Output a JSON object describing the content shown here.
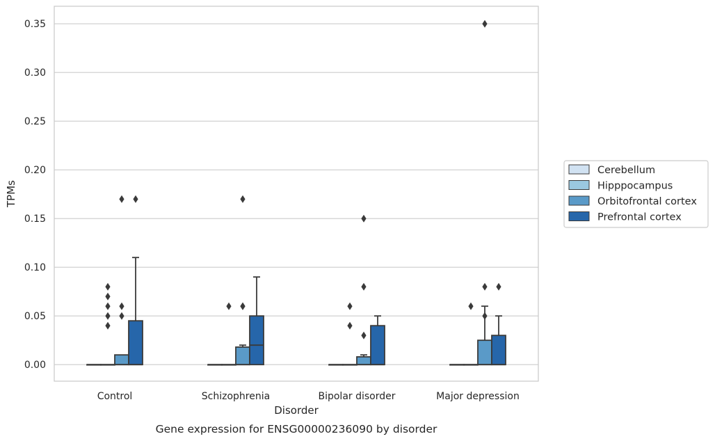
{
  "chart_data": {
    "type": "box",
    "title": "",
    "caption": "Gene expression for ENSG00000236090 by disorder",
    "xlabel": "Disorder",
    "ylabel": "TPMs",
    "ylim": [
      -0.017,
      0.368
    ],
    "yticks": [
      0.0,
      0.05,
      0.1,
      0.15,
      0.2,
      0.25,
      0.3,
      0.35
    ],
    "ytick_labels": [
      "0.00",
      "0.05",
      "0.10",
      "0.15",
      "0.20",
      "0.25",
      "0.30",
      "0.35"
    ],
    "grid": "horizontal",
    "legend_position": "right",
    "categories": [
      "Control",
      "Schizophrenia",
      "Bipolar disorder",
      "Major depression"
    ],
    "series": [
      {
        "name": "Cerebellum",
        "color": "#d1e2f2",
        "boxes": [
          {
            "q1": 0,
            "median": 0,
            "q3": 0,
            "whisker_low": 0,
            "whisker_high": 0,
            "outliers": []
          },
          {
            "q1": 0,
            "median": 0,
            "q3": 0,
            "whisker_low": 0,
            "whisker_high": 0,
            "outliers": []
          },
          {
            "q1": 0,
            "median": 0,
            "q3": 0,
            "whisker_low": 0,
            "whisker_high": 0,
            "outliers": []
          },
          {
            "q1": 0,
            "median": 0,
            "q3": 0,
            "whisker_low": 0,
            "whisker_high": 0,
            "outliers": []
          }
        ]
      },
      {
        "name": "Hipppocampus",
        "color": "#9ac8e0",
        "boxes": [
          {
            "q1": 0,
            "median": 0,
            "q3": 0,
            "whisker_low": 0,
            "whisker_high": 0,
            "outliers": [
              0.04,
              0.05,
              0.06,
              0.07,
              0.08
            ]
          },
          {
            "q1": 0,
            "median": 0,
            "q3": 0,
            "whisker_low": 0,
            "whisker_high": 0,
            "outliers": [
              0.06
            ]
          },
          {
            "q1": 0,
            "median": 0,
            "q3": 0,
            "whisker_low": 0,
            "whisker_high": 0,
            "outliers": [
              0.04,
              0.06
            ]
          },
          {
            "q1": 0,
            "median": 0,
            "q3": 0,
            "whisker_low": 0,
            "whisker_high": 0,
            "outliers": [
              0.06
            ]
          }
        ]
      },
      {
        "name": "Orbitofrontal cortex",
        "color": "#5a9ac8",
        "boxes": [
          {
            "q1": 0,
            "median": 0,
            "q3": 0.01,
            "whisker_low": 0,
            "whisker_high": 0.01,
            "outliers": [
              0.05,
              0.06,
              0.17
            ]
          },
          {
            "q1": 0,
            "median": 0,
            "q3": 0.018,
            "whisker_low": 0,
            "whisker_high": 0.02,
            "outliers": [
              0.06,
              0.06,
              0.17
            ]
          },
          {
            "q1": 0,
            "median": 0,
            "q3": 0.008,
            "whisker_low": 0,
            "whisker_high": 0.01,
            "outliers": [
              0.03,
              0.08,
              0.15
            ]
          },
          {
            "q1": 0,
            "median": 0,
            "q3": 0.025,
            "whisker_low": 0,
            "whisker_high": 0.06,
            "outliers": [
              0.05,
              0.08,
              0.35
            ]
          }
        ]
      },
      {
        "name": "Prefrontal cortex",
        "color": "#2666aa",
        "boxes": [
          {
            "q1": 0,
            "median": 0,
            "q3": 0.045,
            "whisker_low": 0,
            "whisker_high": 0.11,
            "outliers": [
              0.17
            ]
          },
          {
            "q1": 0,
            "median": 0.02,
            "q3": 0.05,
            "whisker_low": 0,
            "whisker_high": 0.09,
            "outliers": []
          },
          {
            "q1": 0,
            "median": 0,
            "q3": 0.04,
            "whisker_low": 0,
            "whisker_high": 0.05,
            "outliers": []
          },
          {
            "q1": 0,
            "median": 0,
            "q3": 0.03,
            "whisker_low": 0,
            "whisker_high": 0.05,
            "outliers": [
              0.08
            ]
          }
        ]
      }
    ]
  }
}
